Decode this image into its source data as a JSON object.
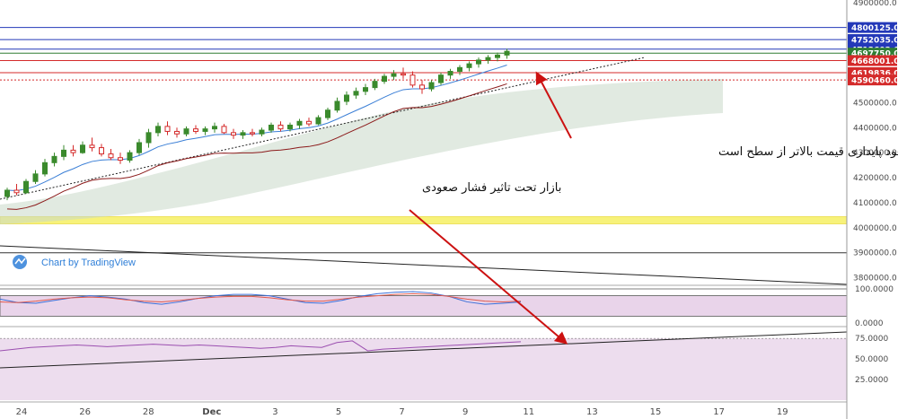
{
  "chart_data": {
    "type": "candlestick",
    "colors": {
      "up": "#3a8a2c",
      "down": "#d42a2a",
      "background": "#ffffff",
      "ema": "#3b7fd6",
      "lower_band": "#8b1a1a",
      "cloud": "#c9d9c9",
      "support_zone": "#f7f27a",
      "rsi_band": "#e9d4ea",
      "arrow": "#cc1111",
      "last_price": "#2e7d32",
      "tag_blue": "#2338b8",
      "tag_red": "#d42a2a"
    },
    "price_axis": {
      "ticks": [
        "4900000.0",
        "4800000.0",
        "4700000.0",
        "4600000.0",
        "4500000.0",
        "4400000.0",
        "4300000.0",
        "4200000.0",
        "4100000.0",
        "4000000.0",
        "3900000.0",
        "3800000.0"
      ],
      "range": [
        3770000,
        4910000
      ]
    },
    "date_axis": {
      "ticks": [
        "24",
        "26",
        "28",
        "Dec",
        "3",
        "5",
        "7",
        "9",
        "11",
        "13",
        "15",
        "17",
        "19"
      ]
    },
    "horizontal_levels": [
      {
        "value": 4800125.0,
        "label": "4800125.0",
        "color": "#2338b8"
      },
      {
        "value": 4752035.0,
        "label": "4752035.0",
        "color": "#2338b8"
      },
      {
        "value": 4713602.0,
        "label": "4713602.0",
        "color": "#2338b8"
      },
      {
        "value": 4697750.0,
        "label": "4697750.0",
        "color": "#2e7d32"
      },
      {
        "value": 4668001.0,
        "label": "4668001.0",
        "color": "#d42a2a"
      },
      {
        "value": 4619836.0,
        "label": "4619836.0",
        "color": "#d42a2a"
      },
      {
        "value": 4590460.0,
        "label": "4590460.0",
        "color": "#d42a2a"
      },
      {
        "value": 3900000.0,
        "label": "",
        "color": "#333333"
      }
    ],
    "support_zone": [
      4015000,
      4045000
    ],
    "candles_ohlc": [
      [
        4125000,
        4160000,
        4110000,
        4150000
      ],
      [
        4150000,
        4175000,
        4130000,
        4140000
      ],
      [
        4140000,
        4195000,
        4135000,
        4185000
      ],
      [
        4185000,
        4230000,
        4175000,
        4215000
      ],
      [
        4215000,
        4275000,
        4205000,
        4260000
      ],
      [
        4260000,
        4300000,
        4245000,
        4285000
      ],
      [
        4285000,
        4330000,
        4270000,
        4310000
      ],
      [
        4310000,
        4330000,
        4285000,
        4300000
      ],
      [
        4300000,
        4345000,
        4295000,
        4330000
      ],
      [
        4330000,
        4360000,
        4305000,
        4320000
      ],
      [
        4320000,
        4335000,
        4285000,
        4295000
      ],
      [
        4295000,
        4315000,
        4270000,
        4280000
      ],
      [
        4280000,
        4300000,
        4255000,
        4270000
      ],
      [
        4270000,
        4310000,
        4260000,
        4300000
      ],
      [
        4300000,
        4355000,
        4290000,
        4340000
      ],
      [
        4340000,
        4395000,
        4320000,
        4380000
      ],
      [
        4380000,
        4420000,
        4365000,
        4405000
      ],
      [
        4405000,
        4425000,
        4370000,
        4385000
      ],
      [
        4385000,
        4400000,
        4360000,
        4375000
      ],
      [
        4375000,
        4405000,
        4365000,
        4395000
      ],
      [
        4395000,
        4410000,
        4375000,
        4385000
      ],
      [
        4385000,
        4405000,
        4370000,
        4395000
      ],
      [
        4395000,
        4420000,
        4380000,
        4405000
      ],
      [
        4405000,
        4415000,
        4375000,
        4380000
      ],
      [
        4380000,
        4395000,
        4355000,
        4370000
      ],
      [
        4370000,
        4390000,
        4355000,
        4380000
      ],
      [
        4380000,
        4395000,
        4365000,
        4375000
      ],
      [
        4375000,
        4400000,
        4365000,
        4390000
      ],
      [
        4390000,
        4420000,
        4380000,
        4410000
      ],
      [
        4410000,
        4425000,
        4385000,
        4395000
      ],
      [
        4395000,
        4420000,
        4385000,
        4410000
      ],
      [
        4410000,
        4435000,
        4395000,
        4425000
      ],
      [
        4425000,
        4440000,
        4405000,
        4415000
      ],
      [
        4415000,
        4450000,
        4410000,
        4440000
      ],
      [
        4440000,
        4480000,
        4430000,
        4470000
      ],
      [
        4470000,
        4520000,
        4460000,
        4505000
      ],
      [
        4505000,
        4545000,
        4490000,
        4530000
      ],
      [
        4530000,
        4560000,
        4515000,
        4545000
      ],
      [
        4545000,
        4575000,
        4530000,
        4560000
      ],
      [
        4560000,
        4595000,
        4550000,
        4585000
      ],
      [
        4585000,
        4615000,
        4575000,
        4605000
      ],
      [
        4605000,
        4630000,
        4590000,
        4615000
      ],
      [
        4615000,
        4640000,
        4595000,
        4610000
      ],
      [
        4610000,
        4625000,
        4560000,
        4570000
      ],
      [
        4570000,
        4590000,
        4535000,
        4555000
      ],
      [
        4555000,
        4590000,
        4545000,
        4580000
      ],
      [
        4580000,
        4620000,
        4570000,
        4610000
      ],
      [
        4610000,
        4635000,
        4595000,
        4625000
      ],
      [
        4625000,
        4650000,
        4610000,
        4640000
      ],
      [
        4640000,
        4665000,
        4625000,
        4655000
      ],
      [
        4655000,
        4680000,
        4640000,
        4670000
      ],
      [
        4670000,
        4690000,
        4655000,
        4680000
      ],
      [
        4680000,
        4700000,
        4665000,
        4690000
      ],
      [
        4690000,
        4715000,
        4675000,
        4705000
      ]
    ],
    "annotations": [
      {
        "text": "شرط ادامه صعود پایداری قیمت بالاتر از سطح است",
        "arrow": true
      },
      {
        "text": "بازار تحت تاثیر فشار صعودی",
        "arrow": true
      }
    ],
    "oscillator_1": {
      "axis_ticks": [
        "100.0000",
        "0.0000"
      ],
      "series": [
        {
          "values": [
            70,
            60,
            58,
            66,
            74,
            80,
            76,
            70,
            60,
            55,
            62,
            72,
            80,
            84,
            84,
            80,
            70,
            60,
            58,
            66,
            78,
            86,
            90,
            92,
            88,
            78,
            62,
            55,
            58,
            62
          ]
        },
        {
          "values": [
            62,
            60,
            64,
            70,
            74,
            76,
            74,
            68,
            64,
            62,
            66,
            72,
            76,
            78,
            78,
            74,
            68,
            64,
            64,
            70,
            76,
            80,
            84,
            86,
            84,
            78,
            70,
            64,
            62,
            64
          ]
        }
      ]
    },
    "oscillator_2": {
      "axis_ticks": [
        "75.0000",
        "50.0000",
        "25.0000"
      ],
      "values": [
        60,
        62,
        64,
        65,
        66,
        67,
        66,
        65,
        66,
        67,
        68,
        67,
        66,
        67,
        66,
        65,
        64,
        63,
        64,
        66,
        65,
        64,
        70,
        72,
        60,
        62,
        63,
        64,
        65,
        66,
        67,
        68,
        69,
        70,
        71
      ]
    },
    "watermark": "Chart by TradingView"
  }
}
